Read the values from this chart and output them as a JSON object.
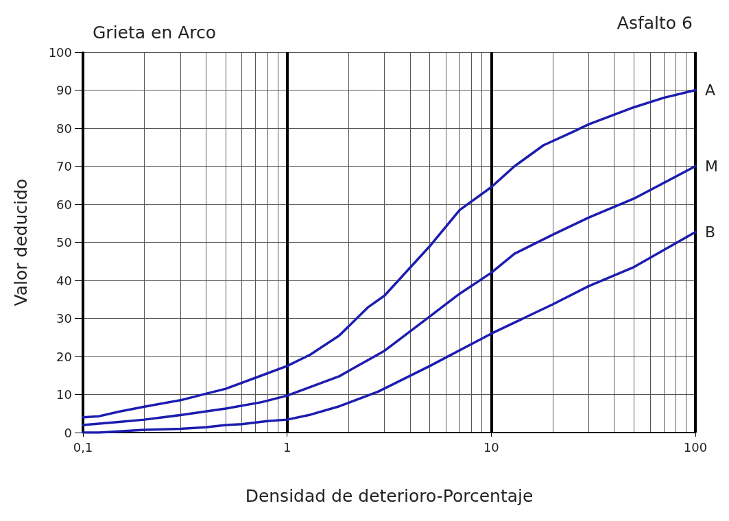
{
  "chart_data": {
    "type": "line",
    "title": "Grieta en Arco",
    "subtitle": "Asfalto 6",
    "xlabel": "Densidad de deterioro-Porcentaje",
    "ylabel": "Valor deducido",
    "log": "x",
    "grid": true,
    "marker": "none",
    "line_style": "solid",
    "legend": false,
    "xlim": [
      0.1,
      100
    ],
    "xticks": [
      {
        "value": 0.1,
        "label": "0,1"
      },
      1,
      10,
      100
    ],
    "ylim": [
      0,
      100
    ],
    "yticks": [
      0,
      10,
      20,
      30,
      40,
      50,
      60,
      70,
      80,
      90,
      100
    ],
    "series": [
      {
        "name": "A",
        "color": "#1c1cb0",
        "x": [
          0.1,
          0.12,
          0.15,
          0.2,
          0.3,
          0.4,
          0.5,
          0.75,
          1,
          1.3,
          1.8,
          2.5,
          3,
          5,
          7,
          10,
          13,
          18,
          25,
          30,
          50,
          70,
          100
        ],
        "values": [
          4,
          4.3,
          5.5,
          6.8,
          8.5,
          10.2,
          11.5,
          15,
          17.5,
          20.5,
          25.5,
          33,
          36,
          49,
          58.5,
          64.5,
          70,
          75.5,
          79,
          81,
          85.5,
          88,
          90
        ]
      },
      {
        "name": "M",
        "color": "#1c1cb0",
        "x": [
          0.1,
          0.15,
          0.2,
          0.3,
          0.5,
          0.75,
          1,
          1.8,
          3,
          5,
          7,
          10,
          13,
          20,
          30,
          50,
          100
        ],
        "values": [
          2,
          2.8,
          3.4,
          4.6,
          6.3,
          8,
          9.7,
          14.8,
          21.5,
          30.5,
          36.5,
          42,
          47,
          52,
          56.5,
          61.5,
          70
        ]
      },
      {
        "name": "B",
        "color": "#1c1cb0",
        "x": [
          0.1,
          0.12,
          0.2,
          0.3,
          0.4,
          0.5,
          0.6,
          0.8,
          1,
          1.3,
          1.8,
          2.8,
          5,
          10,
          20,
          30,
          50,
          100
        ],
        "values": [
          0,
          0,
          0.7,
          1,
          1.4,
          2,
          2.2,
          3,
          3.4,
          4.7,
          6.9,
          10.8,
          17.5,
          26,
          33.7,
          38.5,
          43.5,
          52.7
        ]
      }
    ]
  }
}
